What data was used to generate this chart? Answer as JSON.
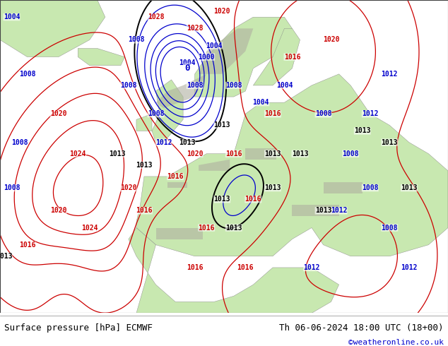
{
  "title_left": "Surface pressure [hPa] ECMWF",
  "title_right": "Th 06-06-2024 18:00 UTC (18+00)",
  "credit": "©weatheronline.co.uk",
  "sea_color": "#d8d8d8",
  "land_color": "#c8e8b0",
  "mountain_color": "#b0b0a0",
  "footer_bg": "#ffffff",
  "title_color": "#000000",
  "credit_color": "#0000cc",
  "figsize": [
    6.34,
    4.9
  ],
  "dpi": 100,
  "contour_blue": "#0000cc",
  "contour_black": "#000000",
  "contour_red": "#cc0000",
  "lw_thin": 0.9,
  "lw_thick": 1.4
}
